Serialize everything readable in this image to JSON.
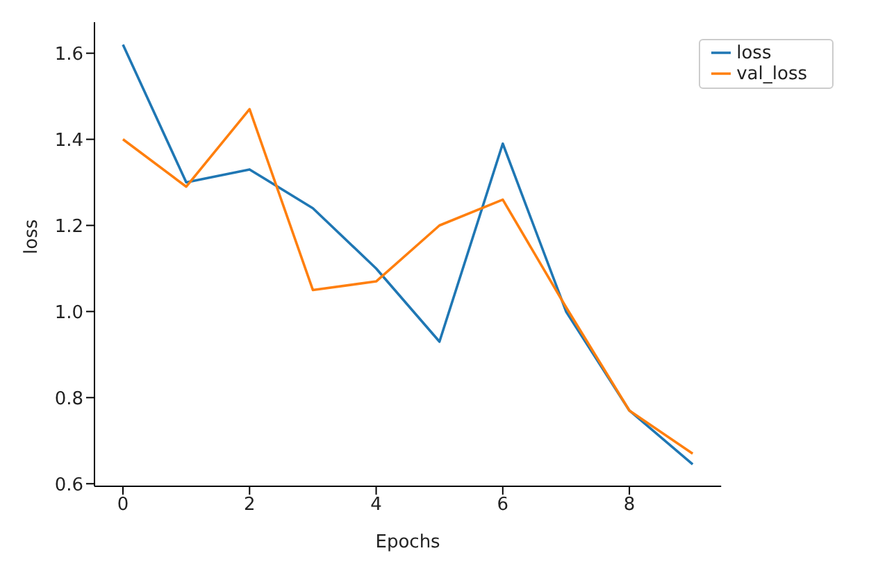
{
  "chart_data": {
    "type": "line",
    "xlabel": "Epochs",
    "ylabel": "loss",
    "x": [
      0,
      1,
      2,
      3,
      4,
      5,
      6,
      7,
      8,
      9
    ],
    "series": [
      {
        "name": "loss",
        "color": "#1f77b4",
        "values": [
          1.62,
          1.3,
          1.33,
          1.24,
          1.1,
          0.93,
          1.39,
          1.0,
          0.77,
          0.645
        ]
      },
      {
        "name": "val_loss",
        "color": "#ff7f0e",
        "values": [
          1.4,
          1.29,
          1.47,
          1.05,
          1.07,
          1.2,
          1.26,
          1.01,
          0.77,
          0.67
        ]
      }
    ],
    "xlim": [
      -0.45,
      9.45
    ],
    "xticks": [
      0,
      2,
      4,
      6,
      8
    ],
    "ylim": [
      0.594,
      1.672
    ],
    "yticks": [
      {
        "value": 0.6,
        "label": "0.6"
      },
      {
        "value": 0.8,
        "label": "0.8"
      },
      {
        "value": 1,
        "label": "1.0"
      },
      {
        "value": 1.2,
        "label": "1.2"
      },
      {
        "value": 1.4,
        "label": "1.4"
      },
      {
        "value": 1.6,
        "label": "1.6"
      }
    ],
    "grid": false,
    "legend": "top right"
  }
}
